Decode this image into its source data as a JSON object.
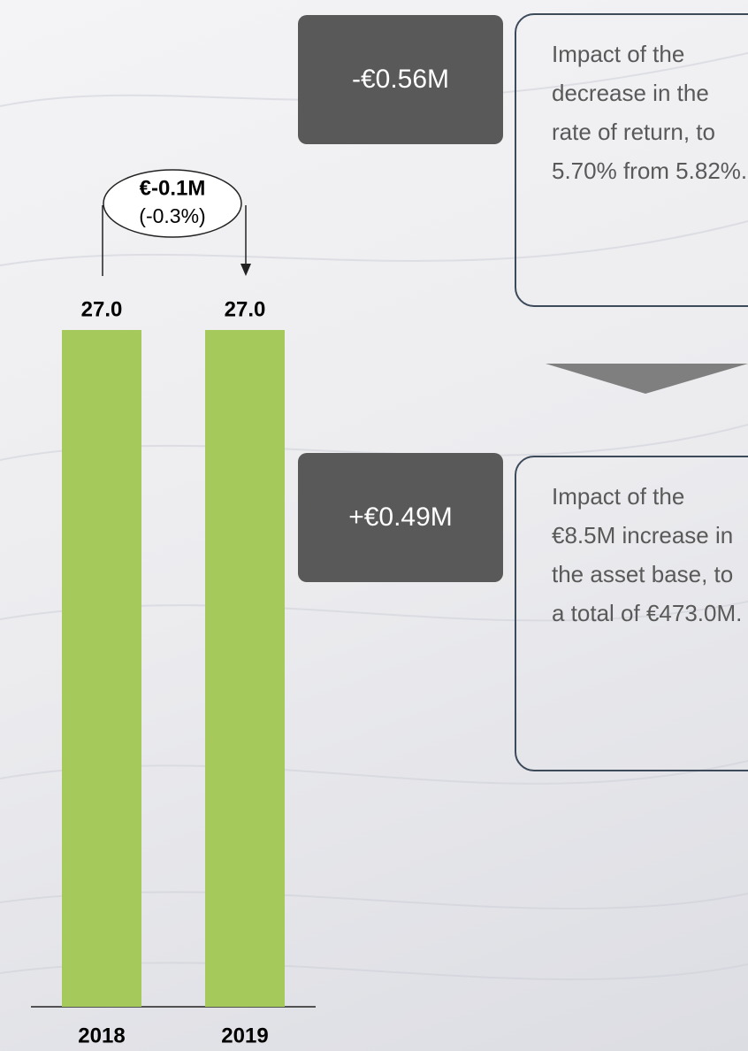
{
  "chart_data": {
    "type": "bar",
    "categories": [
      "2018",
      "2019"
    ],
    "values": [
      27.0,
      27.0
    ],
    "value_labels": [
      "27.0",
      "27.0"
    ],
    "color": "#a5c95a",
    "ylim": [
      0,
      27
    ],
    "change": {
      "amount": "€-0.1M",
      "percent": "(-0.3%)"
    }
  },
  "boxes": [
    {
      "amount": "-€0.56M",
      "text": "Impact of the decrease in the rate of return, to 5.70% from 5.82%."
    },
    {
      "amount": "+€0.49M",
      "text": "Impact of the €8.5M increase in the asset base, to a total of €473.0M."
    }
  ]
}
